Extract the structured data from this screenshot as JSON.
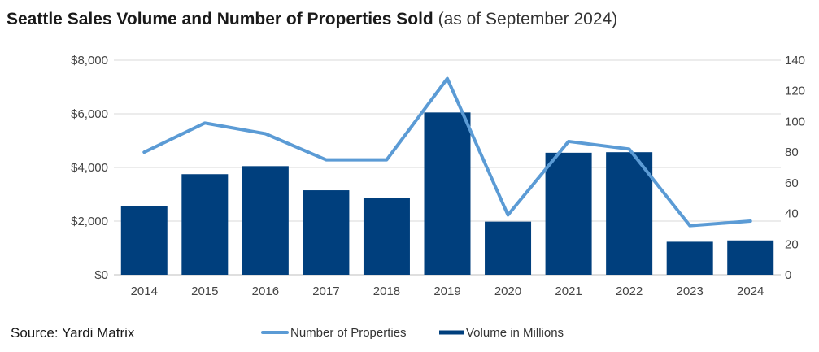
{
  "title": {
    "main": "Seattle Sales Volume and Number of Properties Sold",
    "sub": "(as of September 2024)"
  },
  "source": "Source: Yardi Matrix",
  "chart_data": {
    "type": "bar",
    "categories": [
      "2014",
      "2015",
      "2016",
      "2017",
      "2018",
      "2019",
      "2020",
      "2021",
      "2022",
      "2023",
      "2024"
    ],
    "series": [
      {
        "name": "Volume in Millions",
        "type": "bar",
        "axis": "left",
        "color": "#003f7d",
        "values": [
          2550,
          3750,
          4050,
          3150,
          2850,
          6050,
          1980,
          4550,
          4570,
          1230,
          1280
        ]
      },
      {
        "name": "Number of Properties",
        "type": "line",
        "axis": "right",
        "color": "#5b9bd5",
        "values": [
          80,
          99,
          92,
          75,
          75,
          128,
          39,
          87,
          82,
          32,
          35
        ]
      }
    ],
    "y_left": {
      "ylim": [
        0,
        8000
      ],
      "ticks": [
        "$0",
        "$2,000",
        "$4,000",
        "$6,000",
        "$8,000"
      ],
      "tick_values": [
        0,
        2000,
        4000,
        6000,
        8000
      ]
    },
    "y_right": {
      "ylim": [
        0,
        140
      ],
      "ticks": [
        "0",
        "20",
        "40",
        "60",
        "80",
        "100",
        "120",
        "140"
      ],
      "tick_values": [
        0,
        20,
        40,
        60,
        80,
        100,
        120,
        140
      ]
    },
    "grid": true,
    "legend": {
      "placement": "bottom",
      "items": [
        "Number of Properties",
        "Volume in Millions"
      ]
    }
  }
}
